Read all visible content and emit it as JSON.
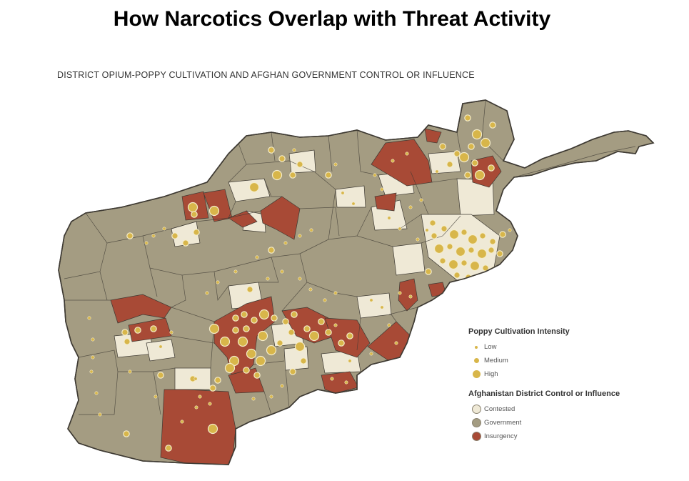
{
  "header": {
    "title": "How Narcotics Overlap with Threat Activity",
    "subtitle": "DISTRICT OPIUM-POPPY CULTIVATION AND AFGHAN GOVERNMENT CONTROL OR INFLUENCE"
  },
  "colors": {
    "government": "#a49c82",
    "contested": "#efe9d6",
    "insurgency": "#a84a36",
    "poppy": "#d8b64a",
    "border": "#3e3a33"
  },
  "legend": {
    "poppy_heading": "Poppy Cultivation Intensity",
    "poppy_items": [
      {
        "label": "Low",
        "level": "low"
      },
      {
        "label": "Medium",
        "level": "medium"
      },
      {
        "label": "High",
        "level": "high"
      }
    ],
    "control_heading": "Afghanistan District Control or Influence",
    "control_items": [
      {
        "label": "Contested",
        "status": "contested"
      },
      {
        "label": "Government",
        "status": "government"
      },
      {
        "label": "Insurgency",
        "status": "insurgency"
      }
    ]
  }
}
